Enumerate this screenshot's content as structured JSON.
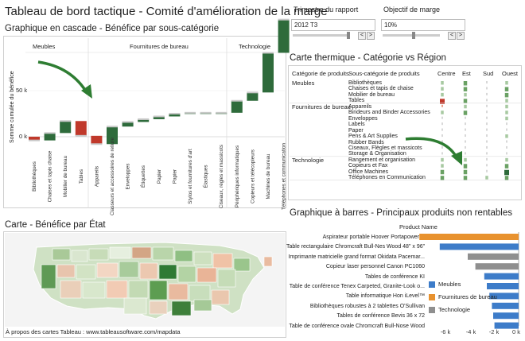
{
  "header": {
    "title": "Tableau de bord tactique - Comité d'amélioration de la marge"
  },
  "filters": {
    "quarter_label": "Trimestre du rapport",
    "quarter_value": "2012 T3",
    "margin_label": "Objectif de marge",
    "margin_value": "10%",
    "stepper_prev": "<",
    "stepper_next": ">"
  },
  "waterfall": {
    "title": "Graphique en cascade - Bénéfice par sous-catégorie",
    "ylabel": "Somme cumulée du bénéfice",
    "groups": [
      "Meubles",
      "Fournitures de bureau",
      "Technologie"
    ],
    "yticks": [
      "50 k",
      "0 k"
    ]
  },
  "heatmap": {
    "title": "Carte thermique - Catégorie vs Région",
    "col_headers": [
      "Catégorie de produits",
      "Sous-catégorie de produits",
      "Centre",
      "Est",
      "Sud",
      "Ouest"
    ],
    "categories": [
      {
        "name": "Meubles",
        "subs": [
          "Bibliothèques",
          "Chaises et tapis de chaise",
          "Mobilier de bureau",
          "Tables"
        ]
      },
      {
        "name": "Fournitures de bureau",
        "subs": [
          "Appareils",
          "Bindeurs and Binder Accessories",
          "Enveloppes",
          "Labels",
          "Paper",
          "Pens & Art Supplies",
          "Rubber Bands",
          "Ciseaux, Flègles et massicots",
          "Storage & Organisation"
        ]
      },
      {
        "name": "Technologie",
        "subs": [
          "Rangement et organisation",
          "Copieurs et Fax",
          "Office Machines",
          "Téléphones en Communication"
        ]
      }
    ]
  },
  "map": {
    "title": "Carte - Bénéfice par État",
    "footnote": "À propos des cartes Tableau : www.tableausoftware.com/mapdata"
  },
  "barchart": {
    "title": "Graphique à barres - Principaux produits non rentables",
    "header": "Product Name",
    "legend": [
      {
        "label": "Meubles",
        "color": "#3d7cc9"
      },
      {
        "label": "Fournitures de bureau",
        "color": "#e8922f"
      },
      {
        "label": "Technologie",
        "color": "#8f8f8f"
      }
    ]
  },
  "chart_data": [
    {
      "type": "bar",
      "title": "Graphique en cascade - Bénéfice par sous-catégorie",
      "ylabel": "Somme cumulée du bénéfice",
      "categories": [
        "Bibliothèques",
        "Chaises et tapis chaise",
        "Mobilier de bureau",
        "Tables",
        "Appareils",
        "Classeurs et accessoires de reliure",
        "Enveloppes",
        "Étiquettes",
        "Papier",
        "Papier",
        "Stylos et fournitures d'art",
        "Élastiques",
        "Ciseaux, règles et massicots",
        "Périphériques informatiques",
        "Copieurs et télécopieurs",
        "Machines de bureau",
        "Téléphones et communication"
      ],
      "values": [
        -4,
        8,
        13,
        -16,
        -9,
        19,
        5,
        3,
        3,
        3,
        1,
        0,
        0,
        13,
        9,
        43,
        36
      ],
      "yticks": [
        0,
        50
      ],
      "ylim": [
        -15,
        130
      ]
    },
    {
      "type": "bar",
      "title": "Graphique à barres - Principaux produits non rentables",
      "categories": [
        "Aspirateur portable Hoover Portapower™",
        "Table rectangulaire Chromcraft Bull-Nes Wood 48\" x 96\"",
        "Imprimante matricielle grand format Okidata Pacemar...",
        "Copieur laser personnel Canon PC1060",
        "Tables de conférence KI",
        "Table de conférence Tenex Carpeted, Granite-Look o...",
        "Table informatique Hon iLevel™",
        "Bibliothèques robustes à 2 tablettes O'Sullivan",
        "Tables de conférence Bevis 36 x 72",
        "Table de conférence ovale Chromcraft Bull-Nose Wood"
      ],
      "values": [
        -7.8,
        -6.2,
        -4.0,
        -3.4,
        -2.7,
        -2.5,
        -2.3,
        -2.1,
        -2.0,
        -1.9
      ],
      "series_category": [
        "Fournitures de bureau",
        "Meubles",
        "Technologie",
        "Technologie",
        "Meubles",
        "Meubles",
        "Meubles",
        "Meubles",
        "Meubles",
        "Meubles"
      ],
      "xticks": [
        "-6 k",
        "-4 k",
        "-2 k",
        "0 k"
      ],
      "xlim": [
        -8,
        0
      ]
    }
  ]
}
